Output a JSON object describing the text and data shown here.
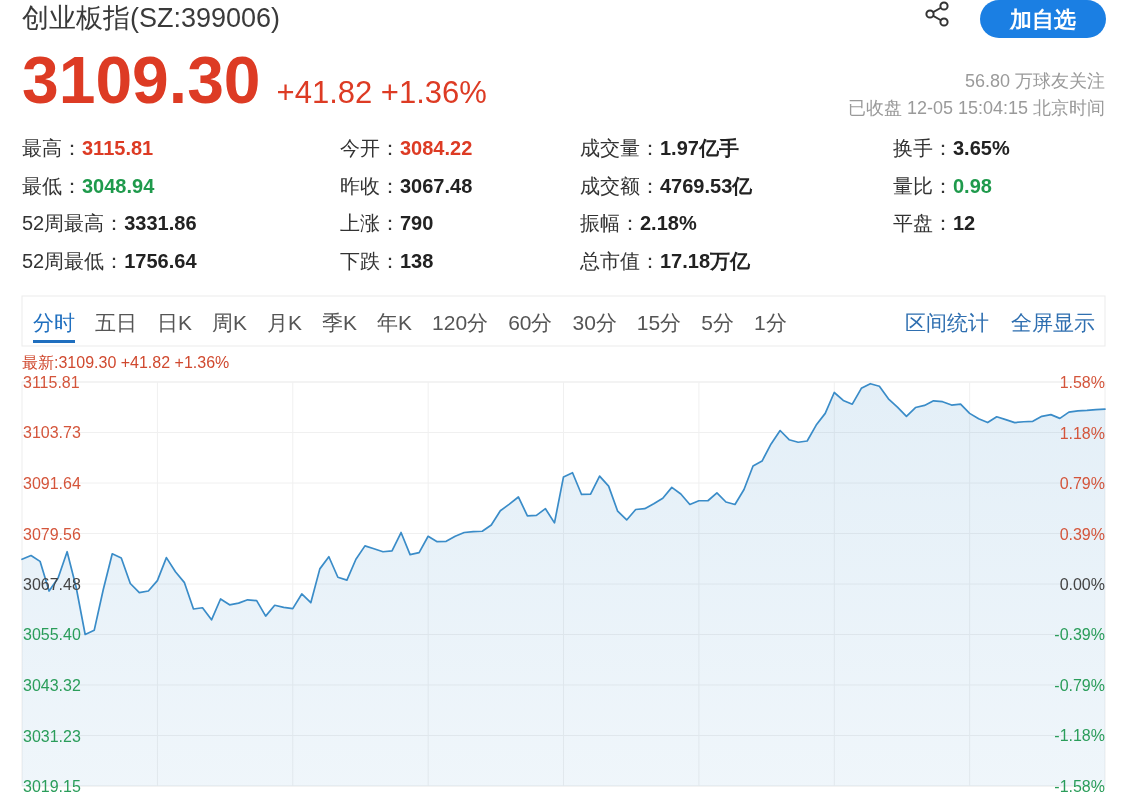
{
  "chart_data": [
    {
      "type": "other",
      "title": "创业板指(SZ:399006)",
      "annotations": [
        "3109.30",
        "+41.82 +1.36%",
        "56.80 万球友关注",
        "已收盘 12-05 15:04:15 北京时间",
        "加自选",
        "最高：",
        "3115.81",
        "今开：",
        "3084.22",
        "成交量：",
        "1.97亿手",
        "换手：",
        "3.65%",
        "最低：",
        "3048.94",
        "昨收：",
        "3067.48",
        "成交额：",
        "4769.53亿",
        "量比：",
        "0.98",
        "52周最高：",
        "3331.86",
        "上涨：",
        "790",
        "振幅：",
        "2.18%",
        "平盘：",
        "12",
        "52周最低：",
        "1756.64",
        "下跌：",
        "138",
        "总市值：",
        "17.18万亿"
      ]
    },
    {
      "type": "area",
      "title": "最新:3109.30 +41.82 +1.36%",
      "annotations": [
        "分时",
        "五日",
        "日K",
        "周K",
        "月K",
        "季K",
        "年K",
        "120分",
        "60分",
        "30分",
        "15分",
        "5分",
        "1分",
        "区间统计",
        "全屏显示"
      ],
      "categories": [
        null,
        null,
        null,
        null,
        null,
        null,
        null,
        null,
        null,
        null,
        null,
        null,
        null,
        null,
        null,
        null,
        null,
        null,
        null,
        null,
        null,
        null,
        null,
        null,
        null,
        null,
        null,
        null,
        null,
        null,
        null,
        null,
        null,
        null,
        null,
        null,
        null,
        null,
        null,
        null,
        null,
        null,
        null,
        null,
        null,
        null,
        null,
        null,
        null,
        null,
        null,
        null,
        null,
        null,
        null,
        null,
        null,
        null,
        null,
        null,
        null,
        null,
        null,
        null,
        null,
        null,
        null,
        null,
        null,
        null,
        null,
        null,
        null,
        null,
        null,
        null,
        null,
        null,
        null,
        null,
        null,
        null,
        null,
        null,
        null,
        null,
        null,
        null,
        null,
        null,
        null,
        null,
        null,
        null,
        null,
        null,
        null,
        null,
        null,
        null,
        null,
        null,
        null,
        null,
        null,
        null,
        null,
        null,
        null,
        null,
        null,
        null,
        null,
        null,
        null,
        null,
        null,
        null,
        null,
        null,
        null
      ],
      "color": "#3a8cc8",
      "values": [
        3073.4,
        3074.3,
        3072.9,
        3065.8,
        3068.9,
        3075.2,
        3066.7,
        3055.4,
        3056.4,
        3066.1,
        3074.7,
        3073.7,
        3067.6,
        3065.4,
        3065.8,
        3068.3,
        3073.8,
        3070.4,
        3067.8,
        3061.5,
        3061.8,
        3058.9,
        3063.9,
        3062.5,
        3062.9,
        3063.7,
        3063.5,
        3059.8,
        3062.4,
        3061.9,
        3061.6,
        3065.1,
        3063.0,
        3071.1,
        3074.0,
        3069.1,
        3068.4,
        3073.4,
        3076.6,
        3075.9,
        3075.2,
        3075.4,
        3079.8,
        3074.5,
        3075.0,
        3078.9,
        3077.6,
        3077.7,
        3078.9,
        3079.8,
        3080.0,
        3080.1,
        3081.6,
        3085.0,
        3086.6,
        3088.3,
        3083.8,
        3083.9,
        3085.5,
        3082.1,
        3093.1,
        3094.1,
        3088.9,
        3089.0,
        3093.3,
        3090.9,
        3084.9,
        3082.8,
        3085.3,
        3085.5,
        3086.7,
        3088.0,
        3090.6,
        3089.0,
        3086.5,
        3087.4,
        3087.4,
        3089.3,
        3087.1,
        3086.5,
        3090.1,
        3095.7,
        3096.9,
        3101.0,
        3104.2,
        3102.0,
        3101.4,
        3101.7,
        3105.5,
        3108.3,
        3113.3,
        3111.4,
        3110.5,
        3114.3,
        3115.4,
        3114.8,
        3111.8,
        3109.8,
        3107.6,
        3109.7,
        3110.2,
        3111.3,
        3111.1,
        3110.3,
        3110.5,
        3108.3,
        3107.0,
        3106.1,
        3107.5,
        3106.8,
        3106.1,
        3106.3,
        3106.4,
        3107.6,
        3108.0,
        3107.1,
        3108.6,
        3108.9,
        3109.0,
        3109.2,
        3109.3
      ],
      "ylim": [
        3019.15,
        3115.81
      ],
      "yticks": [
        3019.15,
        3031.23,
        3043.32,
        {
          "value": 3055.4,
          "label": "3055.40"
        },
        3067.48,
        3079.56,
        3091.64,
        3103.73,
        3115.81
      ],
      "y2lim": [
        -1.58,
        1.58
      ],
      "y2ticks": [
        {
          "value": -1.58,
          "label": "-1.58%"
        },
        {
          "value": -1.18,
          "label": "-1.18%"
        },
        {
          "value": -0.79,
          "label": "-0.79%"
        },
        {
          "value": -0.39,
          "label": "-0.39%"
        },
        {
          "value": 0,
          "label": "0.00%"
        },
        {
          "value": 0.39,
          "label": "0.39%"
        },
        {
          "value": 0.79,
          "label": "0.79%"
        },
        {
          "value": 1.18,
          "label": "1.18%"
        },
        {
          "value": 1.58,
          "label": "1.58%"
        }
      ],
      "grid": true
    }
  ]
}
